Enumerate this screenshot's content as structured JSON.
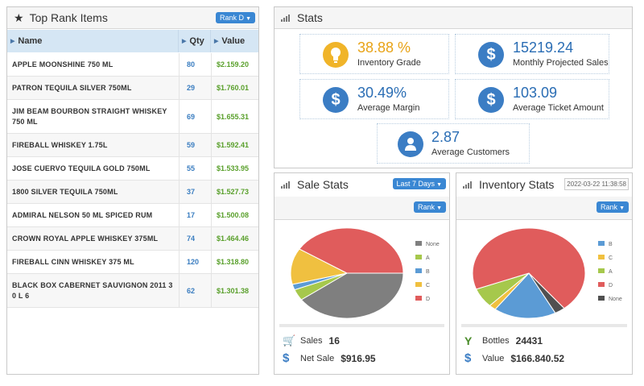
{
  "top_rank": {
    "title": "Top Rank Items",
    "dropdown": "Rank D",
    "headers": [
      "Name",
      "Qty",
      "Value"
    ],
    "rows": [
      {
        "name": "APPLE MOONSHINE 750 ML",
        "qty": "80",
        "value": "$2.159.20"
      },
      {
        "name": "PATRON TEQUILA SILVER 750ML",
        "qty": "29",
        "value": "$1.760.01"
      },
      {
        "name": "JIM BEAM BOURBON STRAIGHT WHISKEY 750 ML",
        "qty": "69",
        "value": "$1.655.31"
      },
      {
        "name": "FIREBALL WHISKEY 1.75L",
        "qty": "59",
        "value": "$1.592.41"
      },
      {
        "name": "JOSE CUERVO TEQUILA GOLD 750ML",
        "qty": "55",
        "value": "$1.533.95"
      },
      {
        "name": "1800 SILVER TEQUILA 750ML",
        "qty": "37",
        "value": "$1.527.73"
      },
      {
        "name": "ADMIRAL NELSON 50 ML SPICED RUM",
        "qty": "17",
        "value": "$1.500.08"
      },
      {
        "name": "CROWN ROYAL APPLE WHISKEY 375ML",
        "qty": "74",
        "value": "$1.464.46"
      },
      {
        "name": "FIREBALL CINN WHISKEY 375 ML",
        "qty": "120",
        "value": "$1.318.80"
      },
      {
        "name": "BLACK BOX CABERNET SAUVIGNON 2011 3 0 L 6",
        "qty": "62",
        "value": "$1.301.38"
      }
    ]
  },
  "stats": {
    "title": "Stats",
    "items": [
      {
        "value": "38.88 %",
        "label": "Inventory Grade",
        "icon": "lightbulb-icon",
        "color": "#f0b429",
        "value_color": "#e8a317"
      },
      {
        "value": "15219.24",
        "label": "Monthly Projected Sales",
        "icon": "dollar-icon",
        "color": "#3b7dc4",
        "value_color": "#2a6db4"
      },
      {
        "value": "30.49%",
        "label": "Average Margin",
        "icon": "dollar-icon",
        "color": "#3b7dc4",
        "value_color": "#2a6db4"
      },
      {
        "value": "103.09",
        "label": "Average Ticket Amount",
        "icon": "dollar-icon",
        "color": "#3b7dc4",
        "value_color": "#2a6db4"
      },
      {
        "value": "2.87",
        "label": "Average Customers",
        "icon": "user-icon",
        "color": "#3b7dc4",
        "value_color": "#2a6db4"
      }
    ]
  },
  "sale_stats": {
    "title": "Sale Stats",
    "period_dropdown": "Last 7 Days",
    "rank_dropdown": "Rank",
    "sales_label": "Sales",
    "sales_value": "16",
    "net_label": "Net Sale",
    "net_value": "$916.95"
  },
  "inventory_stats": {
    "title": "Inventory Stats",
    "date": "2022-03-22 11:38:58",
    "rank_dropdown": "Rank",
    "bottles_label": "Bottles",
    "bottles_value": "24431",
    "value_label": "Value",
    "value_value": "$166.840.52"
  },
  "chart_data": [
    {
      "type": "pie",
      "categories": [
        "None",
        "A",
        "B",
        "C",
        "D"
      ],
      "values": [
        40,
        4,
        2,
        13,
        41
      ],
      "colors": [
        "#7f7f7f",
        "#a6c84c",
        "#5b9bd5",
        "#f0c040",
        "#e05c5c"
      ]
    },
    {
      "type": "pie",
      "categories": [
        "B",
        "C",
        "A",
        "D",
        "None"
      ],
      "values": [
        18,
        2,
        7,
        70,
        3
      ],
      "colors": [
        "#5b9bd5",
        "#f0c040",
        "#a6c84c",
        "#e05c5c",
        "#505050"
      ]
    }
  ]
}
